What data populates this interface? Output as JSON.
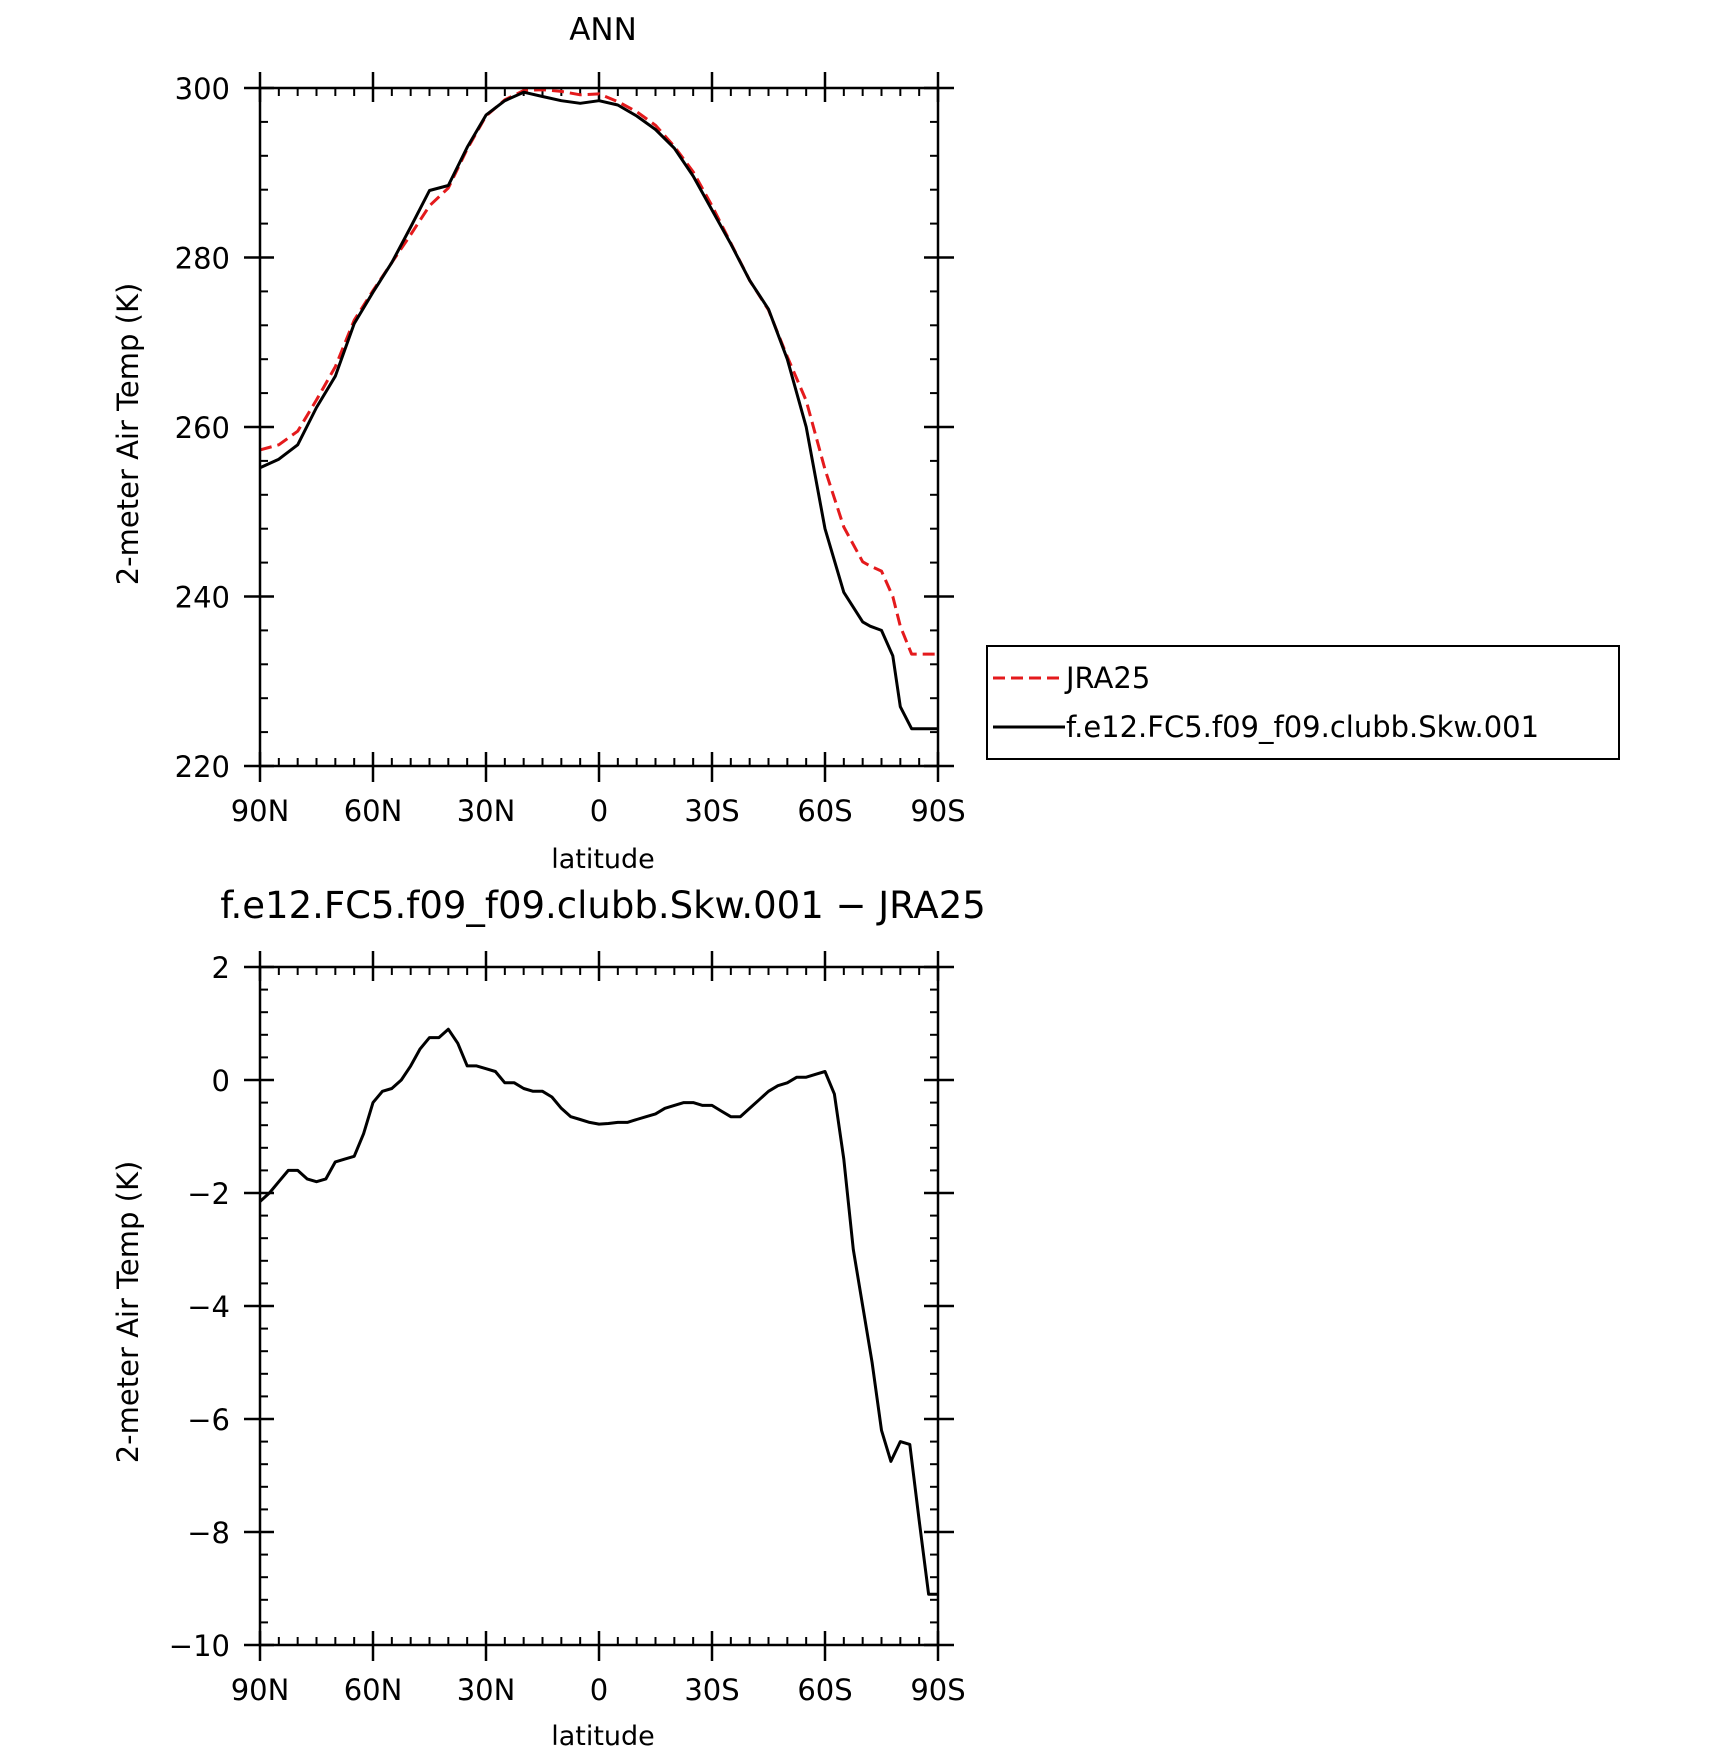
{
  "chart_data": [
    {
      "type": "line",
      "title": "ANN",
      "xlabel": "latitude",
      "ylabel": "2-meter Air Temp (K)",
      "xlim": [
        90,
        -90
      ],
      "ylim": [
        220,
        300
      ],
      "x_ticks": [
        90,
        60,
        30,
        0,
        -30,
        -60,
        -90
      ],
      "x_tick_labels": [
        "90N",
        "60N",
        "30N",
        "0",
        "30S",
        "60S",
        "90S"
      ],
      "y_ticks": [
        220,
        240,
        260,
        280,
        300
      ],
      "y_tick_labels": [
        "220",
        "240",
        "260",
        "280",
        "300"
      ],
      "grid": false,
      "legend_position": "right",
      "series": [
        {
          "name": "JRA25",
          "color": "#e41a1c",
          "dash": "dashed",
          "x": [
            90,
            85,
            80,
            75,
            70,
            65,
            60,
            55,
            50,
            45,
            40,
            35,
            30,
            25,
            20,
            15,
            10,
            5,
            0,
            -5,
            -10,
            -15,
            -20,
            -25,
            -30,
            -35,
            -40,
            -45,
            -50,
            -55,
            -60,
            -65,
            -70,
            -72,
            -75,
            -78,
            -80,
            -83,
            -85,
            -88,
            -90
          ],
          "values": [
            257.3,
            257.9,
            259.5,
            263.2,
            267.1,
            272.6,
            276.1,
            279.4,
            282.7,
            286.1,
            288.2,
            292.8,
            296.7,
            298.6,
            299.7,
            299.8,
            299.6,
            299.2,
            299.3,
            298.4,
            297.2,
            295.6,
            293.1,
            290.1,
            286.1,
            281.7,
            277.3,
            273.8,
            268.3,
            263.1,
            255.0,
            248.2,
            244.1,
            243.6,
            243.0,
            240.0,
            236.5,
            233.2,
            233.2,
            233.2,
            233.2
          ]
        },
        {
          "name": "f.e12.FC5.f09_f09.clubb.Skw.001",
          "color": "#000000",
          "dash": "solid",
          "x": [
            90,
            85,
            80,
            75,
            70,
            65,
            60,
            55,
            50,
            45,
            40,
            35,
            30,
            25,
            20,
            15,
            10,
            5,
            0,
            -5,
            -10,
            -15,
            -20,
            -25,
            -30,
            -35,
            -40,
            -45,
            -50,
            -55,
            -60,
            -65,
            -70,
            -72,
            -75,
            -78,
            -80,
            -83,
            -85,
            -88,
            -90
          ],
          "values": [
            255.2,
            256.2,
            257.9,
            262.3,
            266.0,
            272.2,
            275.9,
            279.4,
            283.6,
            287.9,
            288.5,
            293.0,
            296.8,
            298.5,
            299.5,
            299.0,
            298.5,
            298.2,
            298.5,
            298.0,
            296.7,
            295.1,
            292.9,
            289.6,
            285.6,
            281.6,
            277.3,
            273.9,
            268.0,
            260.0,
            248.0,
            240.5,
            237.0,
            236.5,
            236.0,
            233.0,
            227.0,
            224.4,
            224.4,
            224.4,
            224.4
          ]
        }
      ]
    },
    {
      "type": "line",
      "title": "f.e12.FC5.f09_f09.clubb.Skw.001 − JRA25",
      "xlabel": "latitude",
      "ylabel": "2-meter Air Temp (K)",
      "xlim": [
        90,
        -90
      ],
      "ylim": [
        -10,
        2
      ],
      "x_ticks": [
        90,
        60,
        30,
        0,
        -30,
        -60,
        -90
      ],
      "x_tick_labels": [
        "90N",
        "60N",
        "30N",
        "0",
        "30S",
        "60S",
        "90S"
      ],
      "y_ticks": [
        -10,
        -8,
        -6,
        -4,
        -2,
        0,
        2
      ],
      "y_tick_labels": [
        "−10",
        "−8",
        "−6",
        "−4",
        "−2",
        "0",
        "2"
      ],
      "grid": false,
      "series": [
        {
          "color": "#000000",
          "dash": "solid",
          "x": [
            90,
            87.5,
            85,
            82.5,
            80,
            77.5,
            75,
            72.5,
            70,
            67.5,
            65,
            62.5,
            60,
            57.5,
            55,
            52.5,
            50,
            47.5,
            45,
            42.5,
            40,
            37.5,
            35,
            32.5,
            30,
            27.5,
            25,
            22.5,
            20,
            17.5,
            15,
            12.5,
            10,
            7.5,
            5,
            2.5,
            0,
            -2.5,
            -5,
            -7.5,
            -10,
            -12.5,
            -15,
            -17.5,
            -20,
            -22.5,
            -25,
            -27.5,
            -30,
            -32.5,
            -35,
            -37.5,
            -40,
            -42.5,
            -45,
            -47.5,
            -50,
            -52.5,
            -55,
            -57.5,
            -60,
            -62.5,
            -65,
            -67.5,
            -70,
            -72.5,
            -75,
            -77.5,
            -80,
            -82.5,
            -85,
            -87.5,
            -90
          ],
          "values": [
            -2.15,
            -2.0,
            -1.8,
            -1.6,
            -1.6,
            -1.75,
            -1.8,
            -1.75,
            -1.45,
            -1.4,
            -1.35,
            -0.95,
            -0.4,
            -0.2,
            -0.15,
            0.0,
            0.25,
            0.55,
            0.75,
            0.75,
            0.9,
            0.65,
            0.25,
            0.25,
            0.2,
            0.15,
            -0.05,
            -0.05,
            -0.15,
            -0.2,
            -0.2,
            -0.3,
            -0.5,
            -0.65,
            -0.7,
            -0.75,
            -0.78,
            -0.77,
            -0.75,
            -0.75,
            -0.7,
            -0.65,
            -0.6,
            -0.5,
            -0.45,
            -0.4,
            -0.4,
            -0.45,
            -0.45,
            -0.55,
            -0.65,
            -0.65,
            -0.5,
            -0.35,
            -0.2,
            -0.1,
            -0.05,
            0.05,
            0.05,
            0.1,
            0.15,
            -0.25,
            -1.4,
            -3.0,
            -4.0,
            -5.0,
            -6.2,
            -6.75,
            -6.4,
            -6.45,
            -7.8,
            -9.1,
            -9.1
          ]
        }
      ]
    }
  ]
}
